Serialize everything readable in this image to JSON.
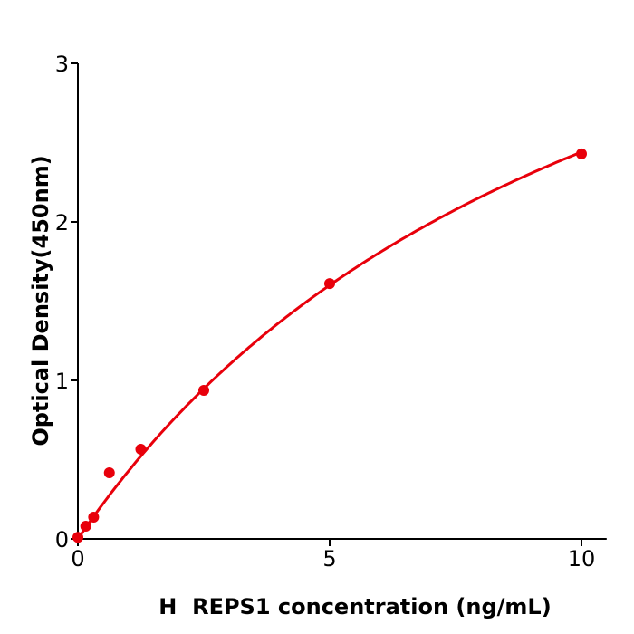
{
  "chart_data": {
    "type": "scatter",
    "title": "",
    "xlabel": "H  REPS1 concentration (ng/mL)",
    "ylabel": "Optical Density(450nm)",
    "xlim": [
      0,
      10.5
    ],
    "ylim": [
      0,
      3
    ],
    "xticks": [
      "0",
      "5",
      "10"
    ],
    "yticks": [
      "0",
      "1",
      "2",
      "3"
    ],
    "grid": false,
    "series": [
      {
        "x": [
          0,
          0.156,
          0.3125,
          0.625,
          1.25,
          2.5,
          5,
          10
        ],
        "y": [
          0.01,
          0.08,
          0.137,
          0.417,
          0.566,
          0.937,
          1.611,
          2.429
        ],
        "color": "#e8000b",
        "fit_line": true
      }
    ]
  }
}
